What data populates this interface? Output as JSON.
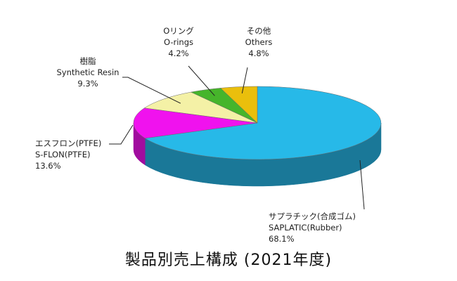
{
  "chart_data": {
    "type": "pie",
    "title": "製品別売上構成 (2021年度)",
    "unit": "%",
    "three_d": true,
    "slices": [
      {
        "name_ja": "サプラチック(合成ゴム)",
        "name_en": "SAPLATIC(Rubber)",
        "value": 68.1,
        "value_label": "68.1%",
        "color": "#27B9E8",
        "side_color": "#1A7898"
      },
      {
        "name_ja": "エスフロン(PTFE)",
        "name_en": "S-FLON(PTFE)",
        "value": 13.6,
        "value_label": "13.6%",
        "color": "#F012EE",
        "side_color": "#A10C9F"
      },
      {
        "name_ja": "樹脂",
        "name_en": "Synthetic Resin",
        "value": 9.3,
        "value_label": "9.3%",
        "color": "#F4F1A6",
        "side_color": "#BDBA78"
      },
      {
        "name_ja": "Oリング",
        "name_en": "O-rings",
        "value": 4.2,
        "value_label": "4.2%",
        "color": "#46B52B",
        "side_color": "#2E7A1D"
      },
      {
        "name_ja": "その他",
        "name_en": "Others",
        "value": 4.8,
        "value_label": "4.8%",
        "color": "#EABF0C",
        "side_color": "#A68708"
      }
    ]
  }
}
